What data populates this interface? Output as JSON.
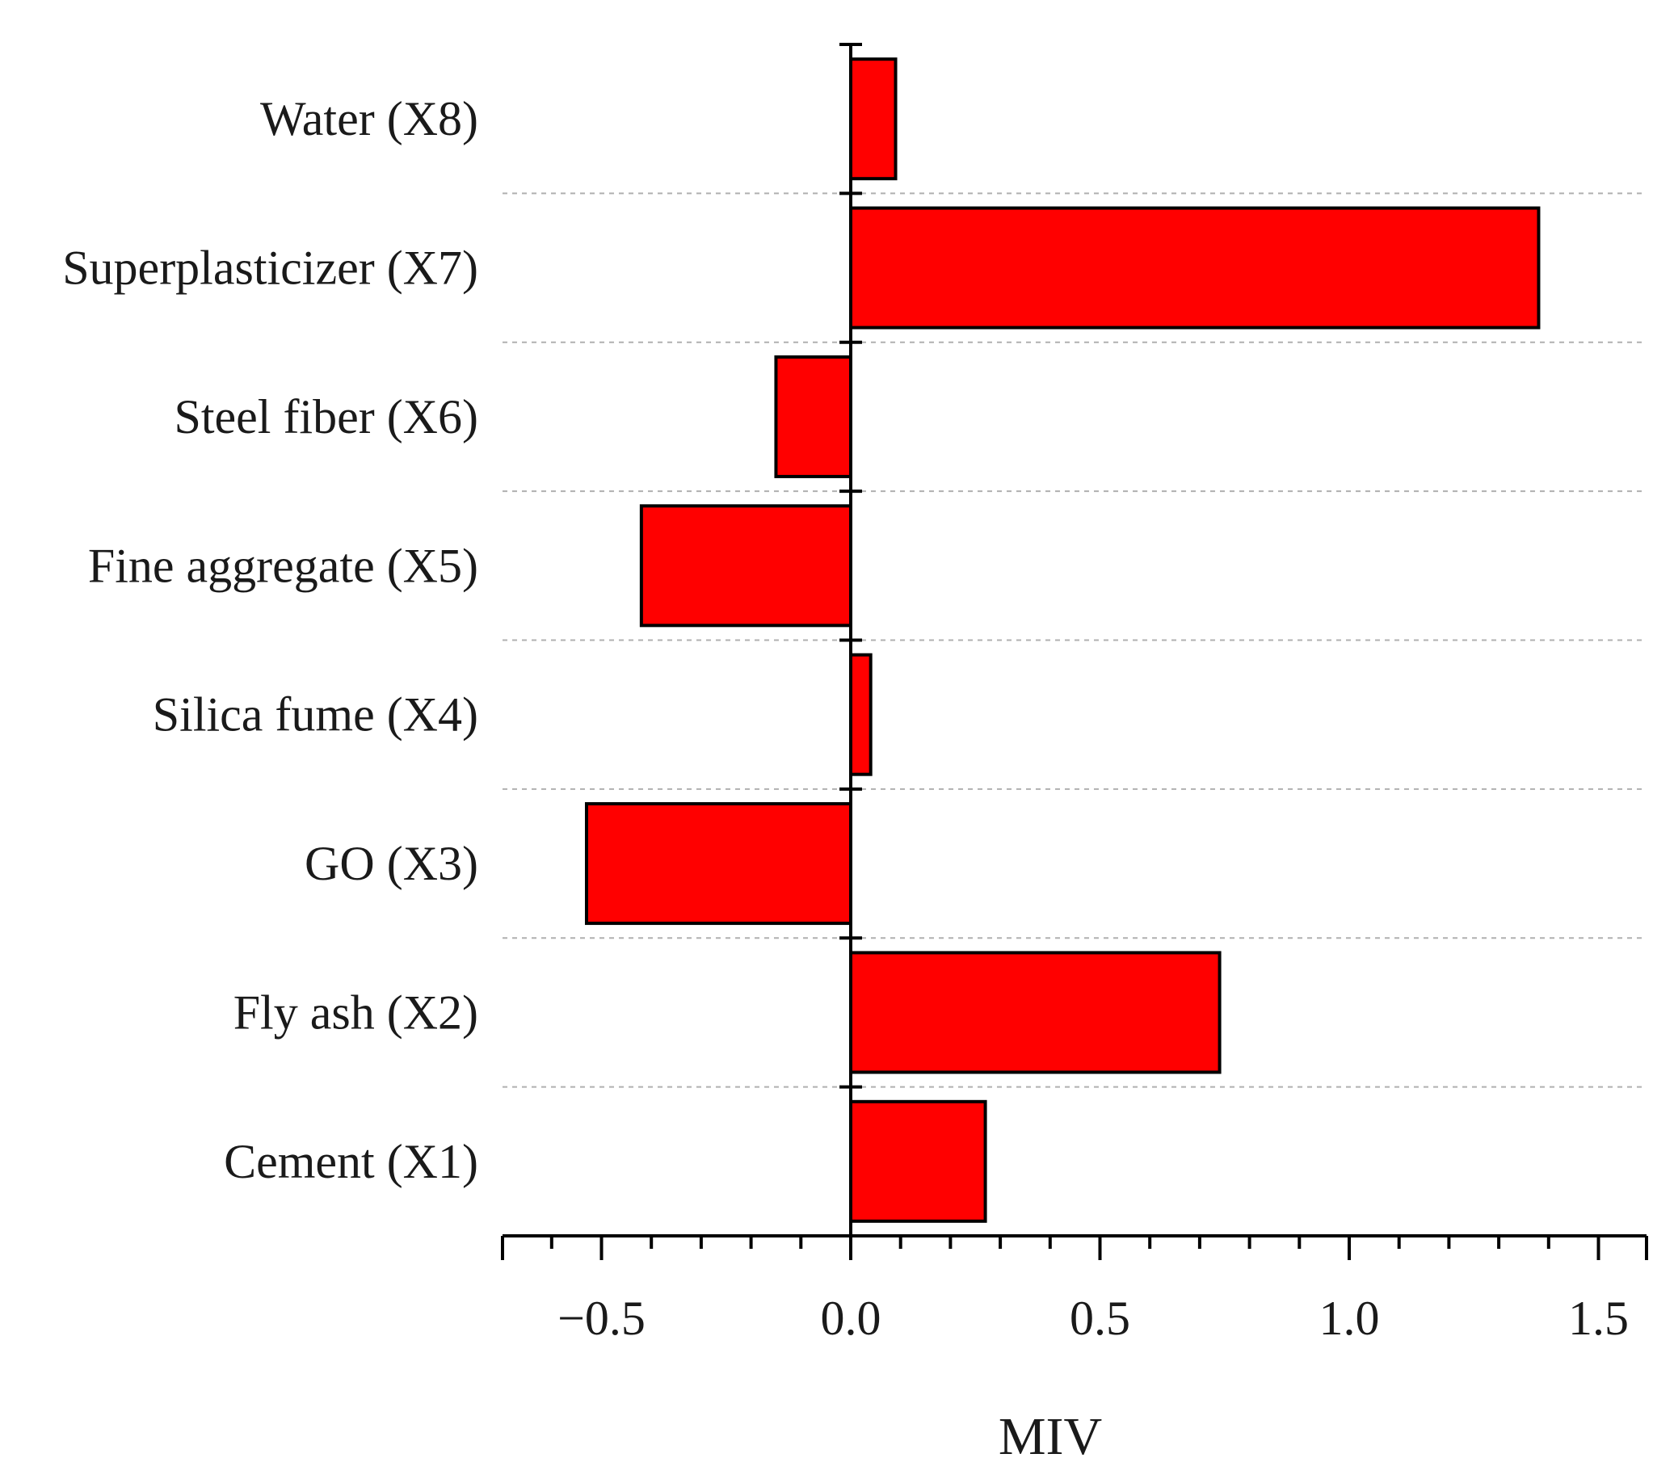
{
  "chart_data": {
    "type": "bar",
    "orientation": "horizontal",
    "categories": [
      "Water (X8)",
      "Superplasticizer (X7)",
      "Steel fiber (X6)",
      "Fine aggregate (X5)",
      "Silica fume (X4)",
      "GO (X3)",
      "Fly ash (X2)",
      "Cement (X1)"
    ],
    "values": [
      0.09,
      1.38,
      -0.15,
      -0.42,
      0.04,
      -0.53,
      0.74,
      0.27
    ],
    "title": "",
    "xlabel": "MIV",
    "ylabel": "",
    "xlim": [
      -0.7,
      1.6
    ],
    "xticks": [
      -0.5,
      0.0,
      0.5,
      1.0,
      1.5
    ],
    "xtick_labels": [
      "−0.5",
      "0.0",
      "0.5",
      "1.0",
      "1.5"
    ],
    "bar_color": "#ff0000",
    "grid": "horizontal dashed separators"
  }
}
